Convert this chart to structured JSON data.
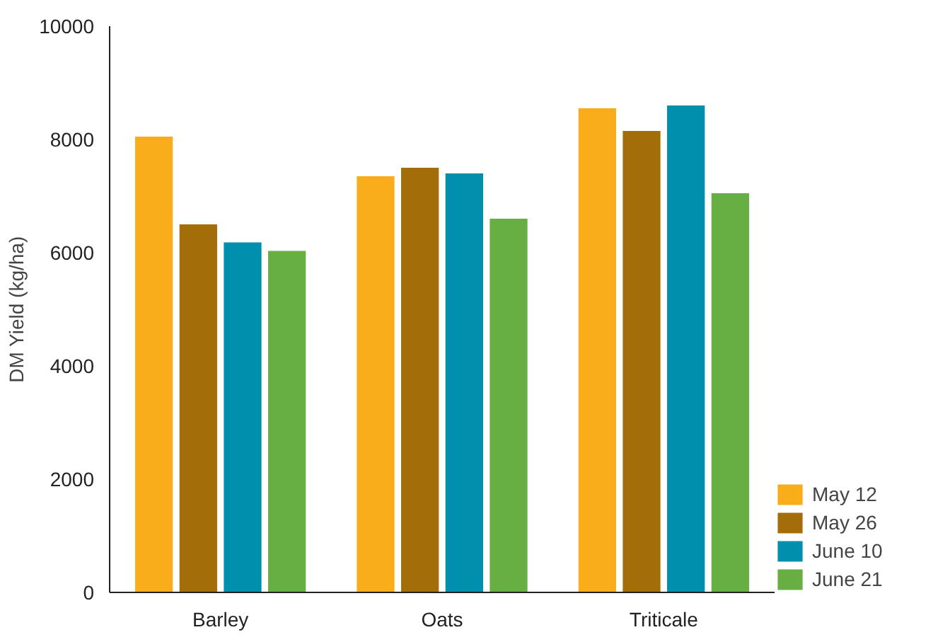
{
  "chart_data": {
    "type": "bar",
    "ylabel": "DM Yield (kg/ha)",
    "categories": [
      "Barley",
      "Oats",
      "Triticale"
    ],
    "series": [
      {
        "name": "May 12",
        "color": "#f9ad1b",
        "values": [
          8050,
          7350,
          8550
        ]
      },
      {
        "name": "May 26",
        "color": "#a36e09",
        "values": [
          6500,
          7500,
          8150
        ]
      },
      {
        "name": "June 10",
        "color": "#0090ad",
        "values": [
          6180,
          7400,
          8600
        ]
      },
      {
        "name": "June 21",
        "color": "#67ae43",
        "values": [
          6030,
          6600,
          7050
        ]
      }
    ],
    "ylim": [
      0,
      10000
    ],
    "yticks": [
      0,
      2000,
      4000,
      6000,
      8000,
      10000
    ],
    "grid": false,
    "legend": "bottom right"
  }
}
